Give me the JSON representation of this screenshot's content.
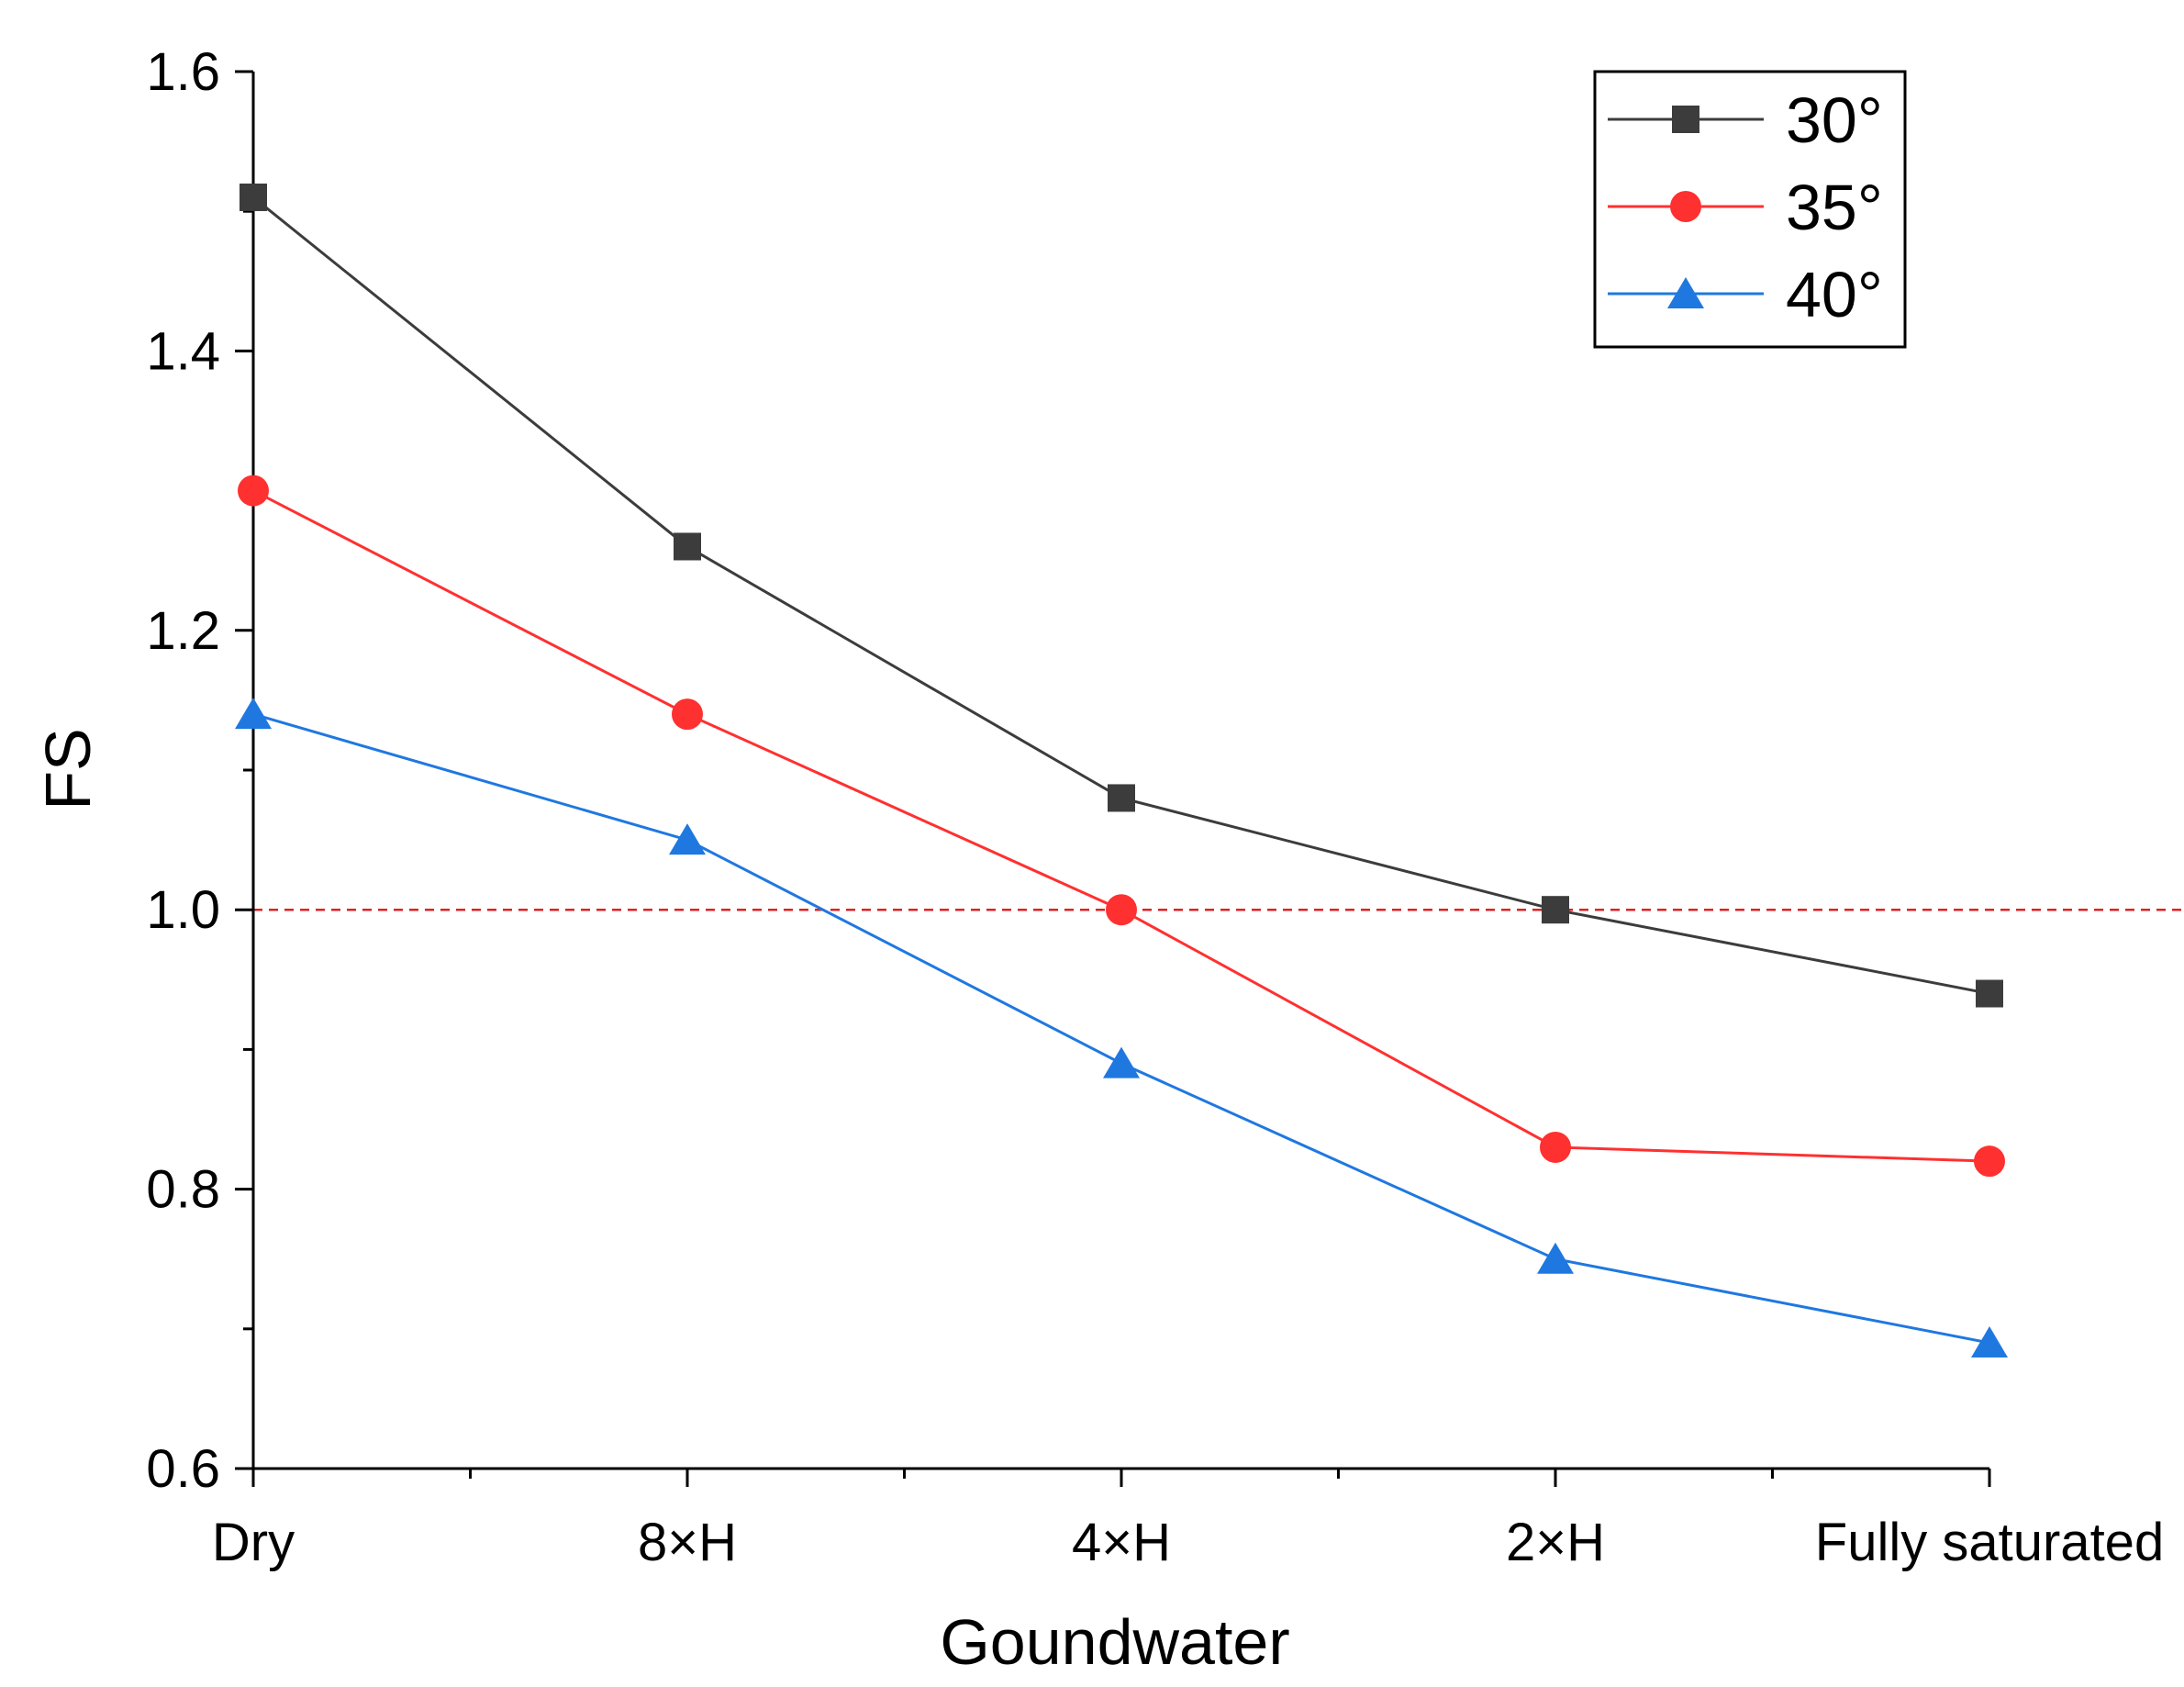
{
  "chart_data": {
    "type": "line",
    "title": "",
    "xlabel": "Goundwater",
    "ylabel": "FS",
    "categories": [
      "Dry",
      "8×H",
      "4×H",
      "2×H",
      "Fully saturated"
    ],
    "ylim": [
      0.6,
      1.6
    ],
    "yticks": [
      "0.6",
      "0.8",
      "1.0",
      "1.2",
      "1.4",
      "1.6"
    ],
    "ytick_values": [
      0.6,
      0.8,
      1.0,
      1.2,
      1.4,
      1.6
    ],
    "grid": false,
    "legend_position": "top-right",
    "reference_line": {
      "value": 1.0,
      "color": "#e02020",
      "style": "dashed"
    },
    "series": [
      {
        "name": "30°",
        "color": "#3c3c3c",
        "marker": "square",
        "values": [
          1.51,
          1.26,
          1.08,
          1.0,
          0.94
        ]
      },
      {
        "name": "35°",
        "color": "#ff3030",
        "marker": "circle",
        "values": [
          1.3,
          1.14,
          1.0,
          0.83,
          0.82
        ]
      },
      {
        "name": "40°",
        "color": "#1f78e0",
        "marker": "triangle",
        "values": [
          1.14,
          1.05,
          0.89,
          0.75,
          0.69
        ]
      }
    ]
  }
}
